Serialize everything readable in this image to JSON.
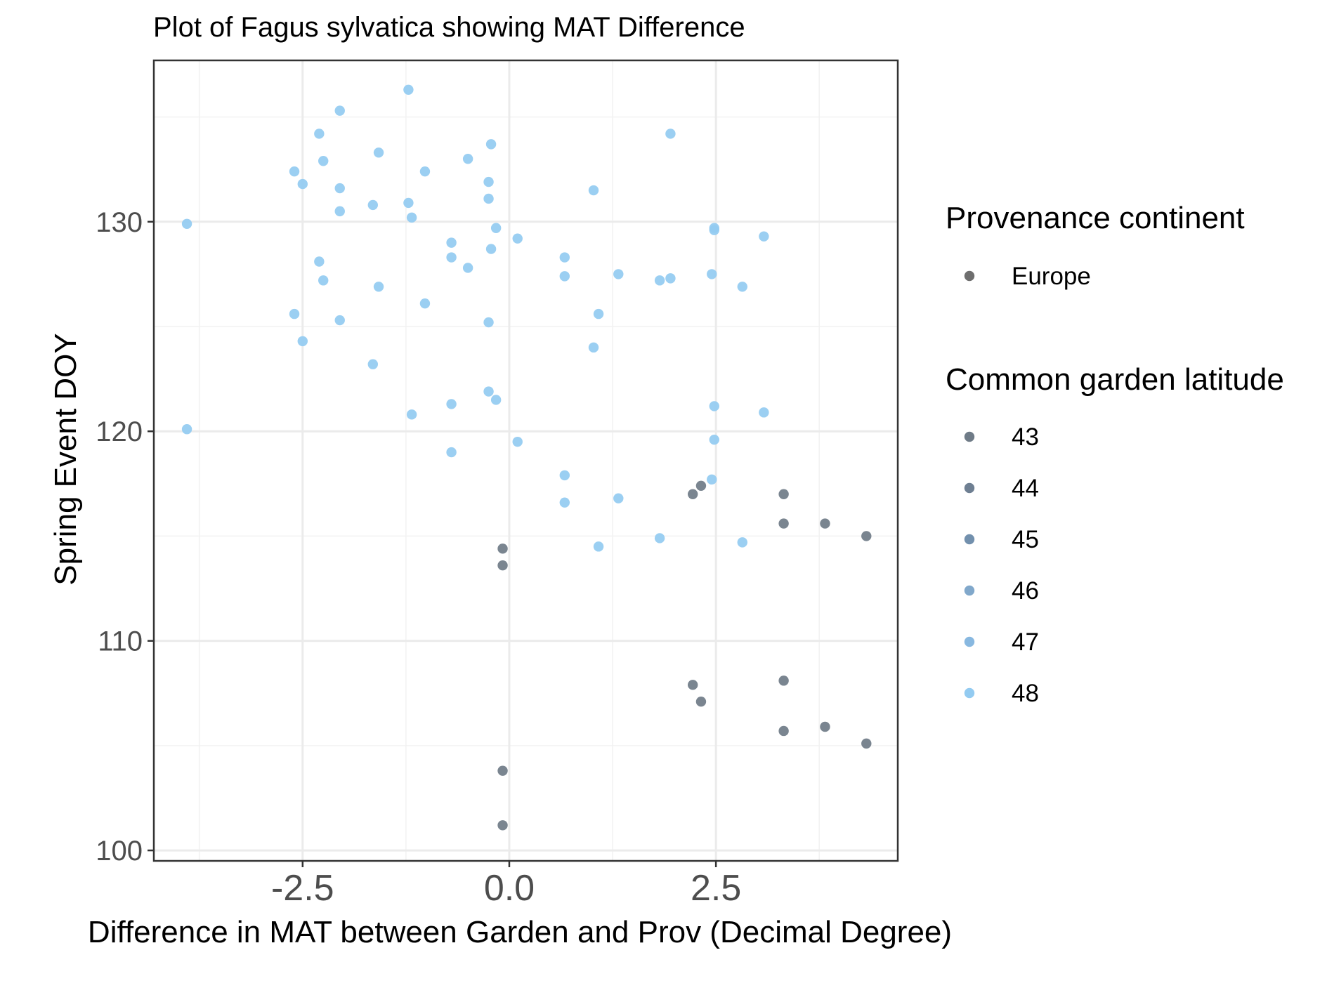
{
  "chart_data": {
    "type": "scatter",
    "title": "Plot of Fagus sylvatica showing MAT Difference",
    "xlabel": "Difference in MAT between Garden and Prov (Decimal Degree)",
    "ylabel": "Spring Event DOY",
    "xlim": [
      -4.3,
      4.7
    ],
    "ylim": [
      99.5,
      137.7
    ],
    "x_ticks": [
      -2.5,
      0.0,
      2.5
    ],
    "x_tick_labels": [
      "-2.5",
      "0.0",
      "2.5"
    ],
    "y_ticks": [
      100,
      110,
      120,
      130
    ],
    "y_tick_labels": [
      "100",
      "110",
      "120",
      "130"
    ],
    "grid": true,
    "legend_position": "right",
    "legends": [
      {
        "title": "Provenance continent",
        "entries": [
          {
            "label": "Europe",
            "color": "#6e6e6e"
          }
        ]
      },
      {
        "title": "Common garden latitude",
        "entries": [
          {
            "label": "43",
            "color": "#6f7b87"
          },
          {
            "label": "44",
            "color": "#6e7f92"
          },
          {
            "label": "45",
            "color": "#7290ad"
          },
          {
            "label": "46",
            "color": "#81a8cb"
          },
          {
            "label": "47",
            "color": "#88b8e0"
          },
          {
            "label": "48",
            "color": "#93cbf1"
          }
        ]
      }
    ],
    "series": [
      {
        "latitude": "48",
        "color": "#93cbf1",
        "points": [
          [
            -3.9,
            129.9
          ],
          [
            -3.9,
            120.1
          ],
          [
            -2.6,
            132.4
          ],
          [
            -2.6,
            125.6
          ],
          [
            -2.5,
            131.8
          ],
          [
            -2.5,
            124.3
          ],
          [
            -2.3,
            134.2
          ],
          [
            -2.3,
            128.1
          ],
          [
            -2.25,
            132.9
          ],
          [
            -2.25,
            127.2
          ],
          [
            -2.05,
            135.3
          ],
          [
            -2.05,
            131.6
          ],
          [
            -2.05,
            130.5
          ],
          [
            -2.05,
            125.3
          ],
          [
            -1.65,
            130.8
          ],
          [
            -1.65,
            123.2
          ],
          [
            -1.58,
            133.3
          ],
          [
            -1.58,
            126.9
          ],
          [
            -1.22,
            136.3
          ],
          [
            -1.22,
            130.9
          ],
          [
            -1.18,
            130.2
          ],
          [
            -1.18,
            120.8
          ],
          [
            -1.02,
            132.4
          ],
          [
            -1.02,
            126.1
          ],
          [
            -0.7,
            129.0
          ],
          [
            -0.7,
            128.3
          ],
          [
            -0.7,
            121.3
          ],
          [
            -0.7,
            119.0
          ],
          [
            -0.5,
            133.0
          ],
          [
            -0.5,
            127.8
          ],
          [
            -0.25,
            131.9
          ],
          [
            -0.25,
            131.1
          ],
          [
            -0.25,
            125.2
          ],
          [
            -0.25,
            121.9
          ],
          [
            -0.22,
            133.7
          ],
          [
            -0.22,
            128.7
          ],
          [
            -0.16,
            129.7
          ],
          [
            -0.16,
            121.5
          ],
          [
            0.1,
            129.2
          ],
          [
            0.1,
            119.5
          ],
          [
            0.67,
            128.3
          ],
          [
            0.67,
            127.4
          ],
          [
            0.67,
            117.9
          ],
          [
            0.67,
            116.6
          ],
          [
            1.02,
            131.5
          ],
          [
            1.02,
            124.0
          ],
          [
            1.08,
            125.6
          ],
          [
            1.08,
            114.5
          ],
          [
            1.32,
            127.5
          ],
          [
            1.32,
            116.8
          ],
          [
            1.82,
            127.2
          ],
          [
            1.82,
            114.9
          ],
          [
            1.95,
            134.2
          ],
          [
            1.95,
            127.3
          ],
          [
            2.45,
            127.5
          ],
          [
            2.45,
            117.7
          ],
          [
            2.48,
            129.7
          ],
          [
            2.48,
            129.6
          ],
          [
            2.48,
            121.2
          ],
          [
            2.48,
            119.6
          ],
          [
            2.82,
            126.9
          ],
          [
            2.82,
            114.7
          ],
          [
            3.08,
            129.3
          ],
          [
            3.08,
            120.9
          ]
        ]
      },
      {
        "latitude": "43",
        "color": "#6f7b87",
        "points": [
          [
            -0.08,
            114.4
          ],
          [
            -0.08,
            113.6
          ],
          [
            -0.08,
            103.8
          ],
          [
            -0.08,
            101.2
          ],
          [
            2.22,
            117.0
          ],
          [
            2.22,
            107.9
          ],
          [
            2.32,
            117.4
          ],
          [
            2.32,
            107.1
          ],
          [
            3.32,
            117.0
          ],
          [
            3.32,
            115.6
          ],
          [
            3.32,
            108.1
          ],
          [
            3.32,
            105.7
          ],
          [
            3.82,
            115.6
          ],
          [
            3.82,
            105.9
          ],
          [
            4.32,
            115.0
          ],
          [
            4.32,
            105.1
          ]
        ]
      }
    ]
  }
}
